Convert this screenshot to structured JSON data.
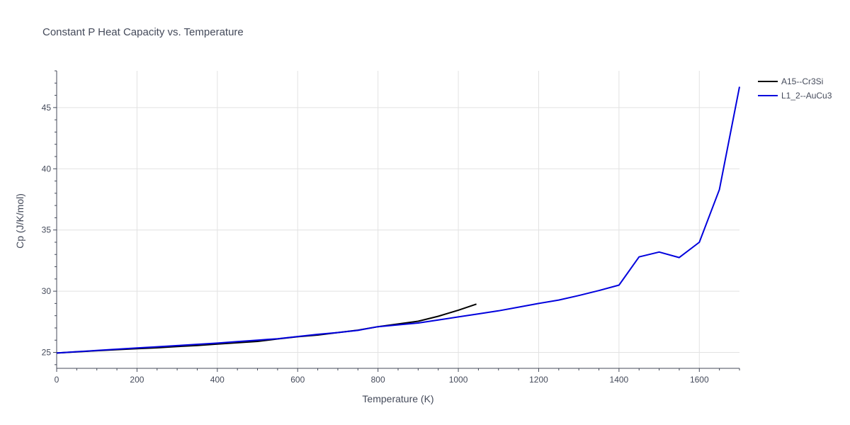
{
  "chart_data": {
    "type": "line",
    "title": "Constant P Heat Capacity vs. Temperature",
    "xlabel": "Temperature (K)",
    "ylabel": "Cp (J/K/mol)",
    "xlim": [
      0,
      1700
    ],
    "ylim": [
      23.7,
      48
    ],
    "xticks": [
      0,
      200,
      400,
      600,
      800,
      1000,
      1200,
      1400,
      1600
    ],
    "yticks": [
      25,
      30,
      35,
      40,
      45
    ],
    "grid": true,
    "legend_position": "top-right",
    "series": [
      {
        "name": "A15--Cr3Si",
        "color": "#000000",
        "x": [
          0,
          50,
          100,
          150,
          200,
          250,
          300,
          350,
          400,
          450,
          500,
          550,
          600,
          650,
          700,
          750,
          800,
          850,
          900,
          950,
          1000,
          1045
        ],
        "y": [
          24.95,
          25.05,
          25.14,
          25.23,
          25.3,
          25.38,
          25.48,
          25.57,
          25.68,
          25.79,
          25.9,
          26.1,
          26.28,
          26.42,
          26.62,
          26.82,
          27.1,
          27.32,
          27.55,
          27.95,
          28.45,
          28.95
        ]
      },
      {
        "name": "L1_2--AuCu3",
        "color": "#0000dd",
        "x": [
          0,
          50,
          100,
          150,
          200,
          250,
          300,
          350,
          400,
          450,
          500,
          550,
          600,
          650,
          700,
          750,
          800,
          850,
          900,
          950,
          1000,
          1050,
          1100,
          1150,
          1200,
          1250,
          1300,
          1350,
          1400,
          1450,
          1500,
          1550,
          1600,
          1650,
          1700
        ],
        "y": [
          24.95,
          25.06,
          25.16,
          25.26,
          25.36,
          25.46,
          25.56,
          25.66,
          25.76,
          25.88,
          26.0,
          26.12,
          26.3,
          26.48,
          26.62,
          26.8,
          27.1,
          27.25,
          27.4,
          27.65,
          27.9,
          28.15,
          28.4,
          28.7,
          29.0,
          29.28,
          29.65,
          30.05,
          30.5,
          32.8,
          33.2,
          32.75,
          34.0,
          38.3,
          46.7
        ]
      }
    ]
  }
}
